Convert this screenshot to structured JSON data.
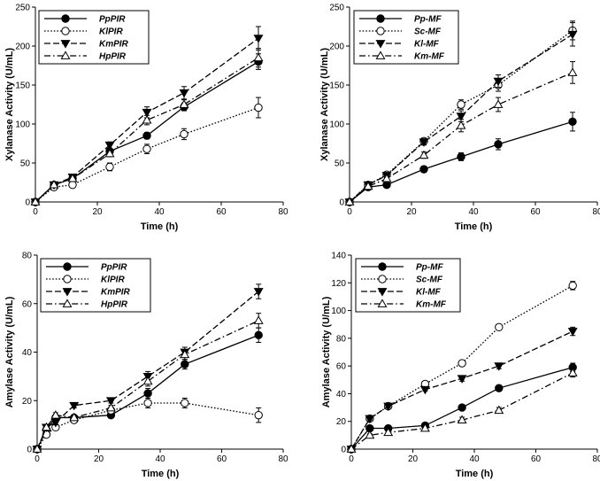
{
  "chart_data": [
    {
      "type": "line",
      "xlabel": "Time (h)",
      "ylabel": "Xylanase Activity (U/mL)",
      "xlim": [
        0,
        80
      ],
      "ylim": [
        0,
        250
      ],
      "xticks": [
        "0",
        "20",
        "40",
        "60",
        "80"
      ],
      "yticks": [
        "0",
        "50",
        "100",
        "150",
        "200",
        "250"
      ],
      "legend_position": "top-left",
      "x": [
        0,
        6,
        12,
        24,
        36,
        48,
        72
      ],
      "series": [
        {
          "name": "PpPIR",
          "marker": "filled-circle",
          "dash": "solid",
          "values": [
            0,
            22,
            30,
            65,
            85,
            122,
            180
          ],
          "errors": [
            0,
            2,
            2,
            4,
            4,
            5,
            10
          ]
        },
        {
          "name": "KlPIR",
          "marker": "open-circle",
          "dash": "dotted",
          "values": [
            0,
            19,
            22,
            45,
            68,
            87,
            121
          ],
          "errors": [
            0,
            2,
            2,
            5,
            6,
            7,
            13
          ]
        },
        {
          "name": "KmPIR",
          "marker": "filled-triangle-down",
          "dash": "dashed",
          "values": [
            0,
            22,
            32,
            73,
            115,
            140,
            210
          ],
          "errors": [
            0,
            2,
            2,
            4,
            7,
            8,
            15
          ]
        },
        {
          "name": "HpPIR",
          "marker": "open-triangle-up",
          "dash": "dashdot",
          "values": [
            0,
            22,
            30,
            62,
            105,
            125,
            185
          ],
          "errors": [
            0,
            2,
            2,
            4,
            6,
            6,
            12
          ]
        }
      ]
    },
    {
      "type": "line",
      "xlabel": "Time (h)",
      "ylabel": "Xylanase Activity (U/mL)",
      "xlim": [
        0,
        80
      ],
      "ylim": [
        0,
        250
      ],
      "xticks": [
        "0",
        "20",
        "40",
        "60",
        "80"
      ],
      "yticks": [
        "0",
        "50",
        "100",
        "150",
        "200",
        "250"
      ],
      "legend_position": "top-left",
      "x": [
        0,
        6,
        12,
        24,
        36,
        48,
        72
      ],
      "series": [
        {
          "name": "Pp-MF",
          "marker": "filled-circle",
          "dash": "solid",
          "values": [
            0,
            19,
            22,
            42,
            58,
            74,
            103
          ],
          "errors": [
            0,
            2,
            2,
            4,
            5,
            7,
            12
          ]
        },
        {
          "name": "Sc-MF",
          "marker": "open-circle",
          "dash": "dotted",
          "values": [
            0,
            22,
            35,
            78,
            125,
            150,
            220
          ],
          "errors": [
            0,
            2,
            2,
            4,
            6,
            8,
            12
          ]
        },
        {
          "name": "Kl-MF",
          "marker": "filled-triangle-down",
          "dash": "dashed",
          "values": [
            0,
            22,
            34,
            77,
            110,
            155,
            215
          ],
          "errors": [
            0,
            2,
            2,
            4,
            7,
            8,
            15
          ]
        },
        {
          "name": "Km-MF",
          "marker": "open-triangle-up",
          "dash": "dashdot",
          "values": [
            0,
            20,
            30,
            60,
            98,
            125,
            166
          ],
          "errors": [
            0,
            2,
            2,
            4,
            8,
            9,
            14
          ]
        }
      ]
    },
    {
      "type": "line",
      "xlabel": "Time (h)",
      "ylabel": "Amylase Activity (U/mL)",
      "xlim": [
        0,
        80
      ],
      "ylim": [
        0,
        80
      ],
      "xticks": [
        "0",
        "20",
        "40",
        "60",
        "80"
      ],
      "yticks": [
        "0",
        "20",
        "40",
        "60",
        "80"
      ],
      "legend_position": "top-left",
      "x": [
        0,
        3,
        6,
        12,
        24,
        36,
        48,
        72
      ],
      "series": [
        {
          "name": "PpPIR",
          "marker": "filled-circle",
          "dash": "solid",
          "values": [
            0,
            8,
            13,
            13,
            14,
            23,
            35,
            47
          ],
          "errors": [
            0,
            1,
            1,
            1,
            1,
            2,
            2,
            3
          ]
        },
        {
          "name": "KlPIR",
          "marker": "open-circle",
          "dash": "dotted",
          "values": [
            0,
            6,
            9,
            12,
            16,
            19,
            19,
            14
          ],
          "errors": [
            0,
            1,
            1,
            1,
            1,
            2,
            2,
            3
          ]
        },
        {
          "name": "KmPIR",
          "marker": "filled-triangle-down",
          "dash": "dashed",
          "values": [
            0,
            9,
            11,
            18,
            20,
            30,
            40,
            65
          ],
          "errors": [
            0,
            1,
            1,
            1,
            1,
            2,
            2,
            3
          ]
        },
        {
          "name": "HpPIR",
          "marker": "open-triangle-up",
          "dash": "dashdot",
          "values": [
            0,
            9,
            14,
            13,
            17,
            28,
            39,
            53
          ],
          "errors": [
            0,
            1,
            1,
            1,
            1,
            2,
            2,
            3
          ]
        }
      ]
    },
    {
      "type": "line",
      "xlabel": "Time (h)",
      "ylabel": "Amylase Activity (U/mL)",
      "xlim": [
        0,
        80
      ],
      "ylim": [
        0,
        140
      ],
      "xticks": [
        "0",
        "20",
        "40",
        "60",
        "80"
      ],
      "yticks": [
        "0",
        "20",
        "40",
        "60",
        "80",
        "100",
        "120",
        "140"
      ],
      "legend_position": "top-left",
      "x": [
        0,
        6,
        12,
        24,
        36,
        48,
        72
      ],
      "series": [
        {
          "name": "Pp-MF",
          "marker": "filled-circle",
          "dash": "solid",
          "values": [
            0,
            15,
            15,
            17,
            30,
            44,
            59
          ],
          "errors": [
            0,
            1,
            1,
            1,
            1,
            2,
            3
          ]
        },
        {
          "name": "Sc-MF",
          "marker": "open-circle",
          "dash": "dotted",
          "values": [
            0,
            22,
            31,
            47,
            62,
            88,
            118
          ],
          "errors": [
            0,
            1,
            1,
            1,
            2,
            2,
            3
          ]
        },
        {
          "name": "Kl-MF",
          "marker": "filled-triangle-down",
          "dash": "dashed",
          "values": [
            0,
            22,
            31,
            43,
            51,
            60,
            85
          ],
          "errors": [
            0,
            1,
            1,
            1,
            2,
            2,
            3
          ]
        },
        {
          "name": "Km-MF",
          "marker": "open-triangle-up",
          "dash": "dashdot",
          "values": [
            0,
            10,
            12,
            15,
            21,
            28,
            55
          ],
          "errors": [
            0,
            1,
            1,
            1,
            2,
            2,
            3
          ]
        }
      ]
    }
  ]
}
